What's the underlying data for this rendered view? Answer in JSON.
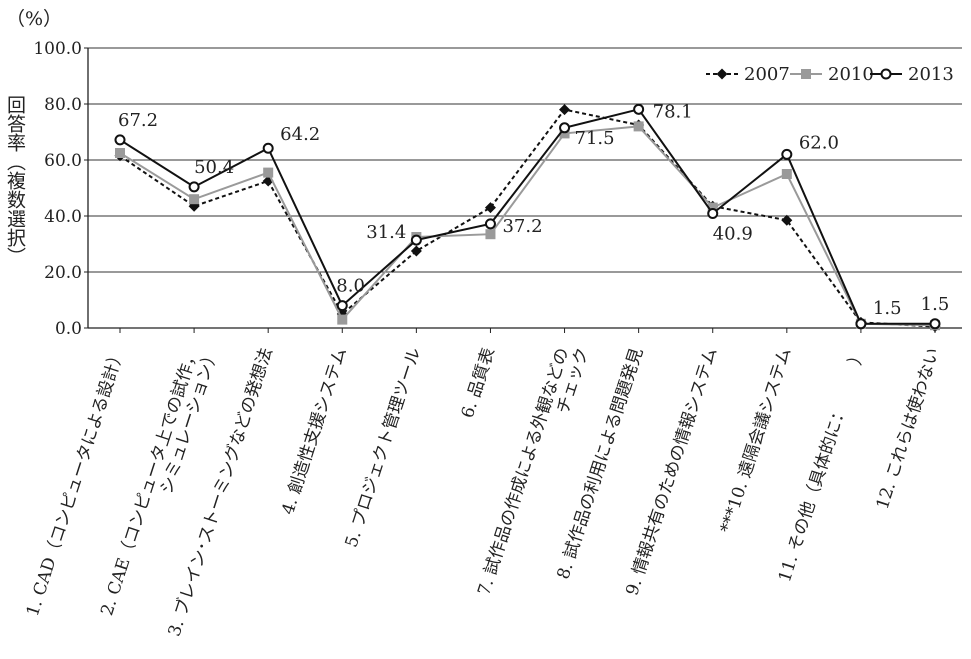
{
  "chart_data": {
    "type": "line",
    "unit_label": "（%）",
    "ylabel": "回答率（複数選択）",
    "ylim": [
      0,
      100
    ],
    "yticks": [
      "0.0",
      "20.0",
      "40.0",
      "60.0",
      "80.0",
      "100.0"
    ],
    "grid": true,
    "legend_position": "top-right",
    "categories": [
      [
        "1. CAD（コンピュータによる設計）"
      ],
      [
        "2. CAE（コンピュータ上での試作，",
        "シミュレーション）"
      ],
      [
        "3. ブレイン･ストーミングなどの発想法"
      ],
      [
        "4. 創造性支援システム"
      ],
      [
        "5. プロジェクト管理ツール"
      ],
      [
        "6. 品質表"
      ],
      [
        "7. 試作品の作成による外観などの",
        "チェック"
      ],
      [
        "8. 試作品の利用による問題発見"
      ],
      [
        "9. 情報共有のための情報システム"
      ],
      [
        "***10. 遠隔会議システム"
      ],
      [
        "11. その他（具体的に：　　　）"
      ],
      [
        "12. これらは使わない"
      ]
    ],
    "series": [
      {
        "name": "2007",
        "color": "#111111",
        "line": "dotted",
        "marker": "diamond",
        "values": [
          61.5,
          43.5,
          52.5,
          5.0,
          27.5,
          43.0,
          78.0,
          72.5,
          43.5,
          38.5,
          2.0,
          0.5
        ]
      },
      {
        "name": "2010",
        "color": "#9a9a9a",
        "line": "solid",
        "marker": "square",
        "values": [
          62.5,
          46.0,
          55.5,
          3.0,
          32.5,
          33.5,
          69.5,
          72.0,
          43.0,
          55.0,
          1.5,
          1.0
        ]
      },
      {
        "name": "2013",
        "color": "#111111",
        "line": "solid",
        "marker": "circle",
        "values": [
          67.2,
          50.4,
          64.2,
          8.0,
          31.4,
          37.2,
          71.5,
          78.1,
          40.9,
          62.0,
          1.5,
          1.5
        ]
      }
    ],
    "data_labels": [
      {
        "series": "2013",
        "index": 0,
        "text": "67.2"
      },
      {
        "series": "2013",
        "index": 1,
        "text": "50.4"
      },
      {
        "series": "2013",
        "index": 2,
        "text": "64.2"
      },
      {
        "series": "2013",
        "index": 3,
        "text": "8.0"
      },
      {
        "series": "2013",
        "index": 4,
        "text": "31.4"
      },
      {
        "series": "2013",
        "index": 5,
        "text": "37.2"
      },
      {
        "series": "2013",
        "index": 6,
        "text": "71.5"
      },
      {
        "series": "2013",
        "index": 7,
        "text": "78.1"
      },
      {
        "series": "2013",
        "index": 8,
        "text": "40.9"
      },
      {
        "series": "2013",
        "index": 9,
        "text": "62.0"
      },
      {
        "series": "2013",
        "index": 10,
        "text": "1.5"
      },
      {
        "series": "2013",
        "index": 11,
        "text": "1.5"
      }
    ]
  }
}
